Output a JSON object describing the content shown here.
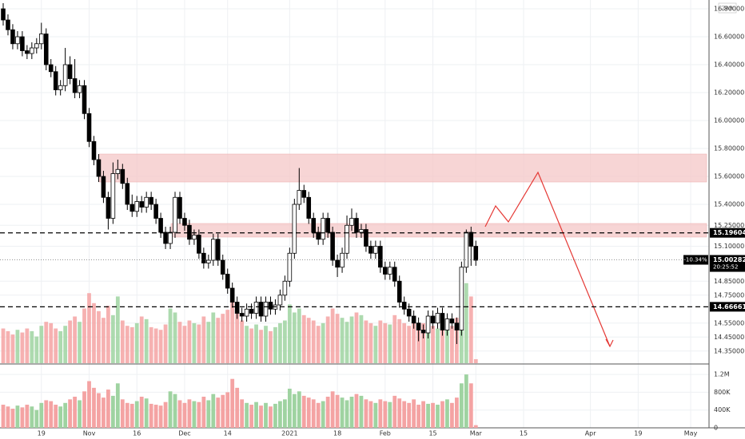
{
  "chart_data": {
    "type": "candlestick",
    "currency": "ZAR",
    "candles": [
      [
        16.8,
        16.84,
        16.68,
        16.72
      ],
      [
        16.72,
        16.76,
        16.61,
        16.65
      ],
      [
        16.65,
        16.69,
        16.51,
        16.55
      ],
      [
        16.55,
        16.64,
        16.51,
        16.6
      ],
      [
        16.6,
        16.64,
        16.46,
        16.5
      ],
      [
        16.5,
        16.54,
        16.44,
        16.48
      ],
      [
        16.48,
        16.56,
        16.44,
        16.52
      ],
      [
        16.52,
        16.59,
        16.48,
        16.55
      ],
      [
        16.55,
        16.7,
        16.51,
        16.62
      ],
      [
        16.62,
        16.66,
        16.36,
        16.4
      ],
      [
        16.4,
        16.44,
        16.31,
        16.35
      ],
      [
        16.35,
        16.39,
        16.18,
        16.22
      ],
      [
        16.22,
        16.29,
        16.18,
        16.25
      ],
      [
        16.25,
        16.52,
        16.21,
        16.4
      ],
      [
        16.4,
        16.46,
        16.26,
        16.3
      ],
      [
        16.3,
        16.44,
        16.16,
        16.2
      ],
      [
        16.2,
        16.29,
        16.16,
        16.25
      ],
      [
        16.25,
        16.29,
        16.01,
        16.05
      ],
      [
        16.05,
        16.09,
        15.81,
        15.85
      ],
      [
        15.85,
        15.89,
        15.68,
        15.72
      ],
      [
        15.72,
        15.76,
        15.56,
        15.6
      ],
      [
        15.6,
        15.64,
        15.41,
        15.45
      ],
      [
        15.45,
        15.49,
        15.22,
        15.3
      ],
      [
        15.3,
        15.7,
        15.26,
        15.62
      ],
      [
        15.62,
        15.72,
        15.58,
        15.65
      ],
      [
        15.65,
        15.69,
        15.51,
        15.55
      ],
      [
        15.55,
        15.59,
        15.36,
        15.4
      ],
      [
        15.4,
        15.47,
        15.31,
        15.35
      ],
      [
        15.35,
        15.46,
        15.31,
        15.42
      ],
      [
        15.42,
        15.46,
        15.34,
        15.38
      ],
      [
        15.38,
        15.49,
        15.34,
        15.45
      ],
      [
        15.45,
        15.49,
        15.36,
        15.4
      ],
      [
        15.4,
        15.44,
        15.26,
        15.3
      ],
      [
        15.3,
        15.34,
        15.16,
        15.2
      ],
      [
        15.2,
        15.24,
        15.08,
        15.12
      ],
      [
        15.12,
        15.24,
        15.08,
        15.2
      ],
      [
        15.2,
        15.49,
        15.16,
        15.45
      ],
      [
        15.45,
        15.49,
        15.26,
        15.3
      ],
      [
        15.3,
        15.34,
        15.21,
        15.25
      ],
      [
        15.25,
        15.29,
        15.11,
        15.15
      ],
      [
        15.15,
        15.22,
        15.11,
        15.18
      ],
      [
        15.18,
        15.22,
        15.01,
        15.05
      ],
      [
        15.05,
        15.09,
        14.94,
        14.98
      ],
      [
        14.98,
        15.04,
        14.94,
        15.0
      ],
      [
        15.0,
        15.19,
        14.96,
        15.15
      ],
      [
        15.15,
        15.19,
        14.96,
        15.0
      ],
      [
        15.0,
        15.04,
        14.86,
        14.9
      ],
      [
        14.9,
        14.94,
        14.76,
        14.8
      ],
      [
        14.8,
        14.84,
        14.66,
        14.7
      ],
      [
        14.7,
        14.74,
        14.58,
        14.62
      ],
      [
        14.62,
        14.66,
        14.56,
        14.6
      ],
      [
        14.6,
        14.69,
        14.56,
        14.65
      ],
      [
        14.65,
        14.69,
        14.58,
        14.62
      ],
      [
        14.62,
        14.74,
        14.58,
        14.7
      ],
      [
        14.7,
        14.74,
        14.56,
        14.6
      ],
      [
        14.6,
        14.74,
        14.56,
        14.7
      ],
      [
        14.7,
        14.74,
        14.61,
        14.65
      ],
      [
        14.65,
        14.72,
        14.61,
        14.68
      ],
      [
        14.68,
        14.79,
        14.64,
        14.75
      ],
      [
        14.75,
        14.89,
        14.71,
        14.85
      ],
      [
        14.85,
        15.09,
        14.81,
        15.05
      ],
      [
        15.05,
        15.44,
        15.01,
        15.4
      ],
      [
        15.4,
        15.66,
        15.36,
        15.5
      ],
      [
        15.5,
        15.54,
        15.41,
        15.45
      ],
      [
        15.45,
        15.49,
        15.26,
        15.3
      ],
      [
        15.3,
        15.34,
        15.16,
        15.2
      ],
      [
        15.2,
        15.24,
        15.11,
        15.15
      ],
      [
        15.15,
        15.34,
        15.11,
        15.3
      ],
      [
        15.3,
        15.34,
        15.16,
        15.2
      ],
      [
        15.2,
        15.24,
        14.96,
        15.0
      ],
      [
        15.0,
        15.04,
        14.88,
        14.95
      ],
      [
        14.95,
        15.09,
        14.91,
        15.05
      ],
      [
        15.05,
        15.32,
        15.01,
        15.25
      ],
      [
        15.25,
        15.37,
        15.21,
        15.3
      ],
      [
        15.3,
        15.34,
        15.16,
        15.2
      ],
      [
        15.2,
        15.26,
        15.16,
        15.22
      ],
      [
        15.22,
        15.26,
        15.06,
        15.1
      ],
      [
        15.1,
        15.14,
        15.01,
        15.05
      ],
      [
        15.05,
        15.14,
        15.01,
        15.1
      ],
      [
        15.1,
        15.14,
        14.91,
        14.95
      ],
      [
        14.95,
        14.99,
        14.86,
        14.9
      ],
      [
        14.9,
        14.99,
        14.86,
        14.95
      ],
      [
        14.95,
        14.99,
        14.81,
        14.85
      ],
      [
        14.85,
        14.89,
        14.66,
        14.7
      ],
      [
        14.7,
        14.74,
        14.61,
        14.65
      ],
      [
        14.65,
        14.69,
        14.56,
        14.6
      ],
      [
        14.6,
        14.64,
        14.51,
        14.55
      ],
      [
        14.55,
        14.59,
        14.42,
        14.5
      ],
      [
        14.5,
        14.54,
        14.44,
        14.48
      ],
      [
        14.48,
        14.64,
        14.44,
        14.6
      ],
      [
        14.6,
        14.64,
        14.51,
        14.55
      ],
      [
        14.55,
        14.66,
        14.51,
        14.62
      ],
      [
        14.62,
        14.66,
        14.46,
        14.5
      ],
      [
        14.5,
        14.62,
        14.46,
        14.58
      ],
      [
        14.58,
        14.62,
        14.51,
        14.55
      ],
      [
        14.55,
        14.59,
        14.4,
        14.5
      ],
      [
        14.5,
        14.99,
        14.46,
        14.95
      ],
      [
        14.95,
        15.22,
        14.91,
        15.2
      ],
      [
        15.2,
        15.24,
        14.96,
        15.1
      ],
      [
        15.1,
        15.14,
        14.96,
        15.0
      ]
    ],
    "volumes": [
      520000,
      480000,
      430000,
      500000,
      460000,
      520000,
      480000,
      400000,
      560000,
      620000,
      600000,
      520000,
      480000,
      560000,
      640000,
      700000,
      620000,
      820000,
      1050000,
      900000,
      780000,
      680000,
      860000,
      720000,
      1000000,
      640000,
      560000,
      540000,
      600000,
      700000,
      660000,
      540000,
      520000,
      500000,
      580000,
      820000,
      760000,
      620000,
      560000,
      640000,
      600000,
      580000,
      700000,
      620000,
      760000,
      680000,
      740000,
      800000,
      1100000,
      900000,
      640000,
      560000,
      520000,
      580000,
      500000,
      560000,
      480000,
      540000,
      600000,
      640000,
      880000,
      760000,
      820000,
      720000,
      680000,
      640000,
      560000,
      600000,
      700000,
      820000,
      740000,
      680000,
      620000,
      700000,
      760000,
      720000,
      640000,
      600000,
      560000,
      640000,
      600000,
      580000,
      720000,
      660000,
      600000,
      560000,
      640000,
      520000,
      600000,
      540000,
      560000,
      520000,
      600000,
      640000,
      560000,
      680000,
      1000000,
      1200000,
      1000000,
      60000
    ],
    "up_color": "#ffffff",
    "down_color": "#000000",
    "volume_up_color": "#9fd3a1",
    "volume_down_color": "#f4a3a3",
    "xlim": [
      0,
      146
    ],
    "xticks": [
      {
        "value": 8,
        "label": "19"
      },
      {
        "value": 18,
        "label": "Nov"
      },
      {
        "value": 28,
        "label": "16"
      },
      {
        "value": 38,
        "label": "Dec"
      },
      {
        "value": 47,
        "label": "14"
      },
      {
        "value": 60,
        "label": "2021"
      },
      {
        "value": 70,
        "label": "18"
      },
      {
        "value": 80,
        "label": "Feb"
      },
      {
        "value": 90,
        "label": "15"
      },
      {
        "value": 99,
        "label": "Mar"
      },
      {
        "value": 109,
        "label": "15"
      },
      {
        "value": 123,
        "label": "Apr"
      },
      {
        "value": 133,
        "label": "19"
      },
      {
        "value": 144,
        "label": "May"
      }
    ],
    "ylim": [
      14.263,
      16.863
    ],
    "yticks": [
      {
        "value": 16.8,
        "label": "16.80000"
      },
      {
        "value": 16.6,
        "label": "16.60000"
      },
      {
        "value": 16.4,
        "label": "16.40000"
      },
      {
        "value": 16.2,
        "label": "16.20000"
      },
      {
        "value": 16.0,
        "label": "16.00000"
      },
      {
        "value": 15.8,
        "label": "15.80000"
      },
      {
        "value": 15.6,
        "label": "15.60000"
      },
      {
        "value": 15.4,
        "label": "15.40000"
      },
      {
        "value": 15.25,
        "label": "15.25000"
      },
      {
        "value": 15.1,
        "label": "15.10000"
      },
      {
        "value": 14.85,
        "label": "14.85000"
      },
      {
        "value": 14.75,
        "label": "14.75000"
      },
      {
        "value": 14.55,
        "label": "14.55000"
      },
      {
        "value": 14.45,
        "label": "14.45000"
      },
      {
        "value": 14.35,
        "label": "14.35000"
      }
    ],
    "volume_ylim": [
      0,
      1400000
    ],
    "volume_yticks": [
      {
        "value": 0,
        "label": "0"
      },
      {
        "value": 400000,
        "label": "400K"
      },
      {
        "value": 800000,
        "label": "800K"
      },
      {
        "value": 1200000,
        "label": "1.2M"
      }
    ],
    "levels": [
      {
        "value": 15.19604,
        "label": "15.19604"
      },
      {
        "value": 14.66661,
        "label": "14.66661"
      }
    ],
    "last_price": {
      "value": 15.00282,
      "label": "15.00282",
      "change": "-10.34%",
      "countdown": "20:25:52"
    },
    "grid": true
  }
}
